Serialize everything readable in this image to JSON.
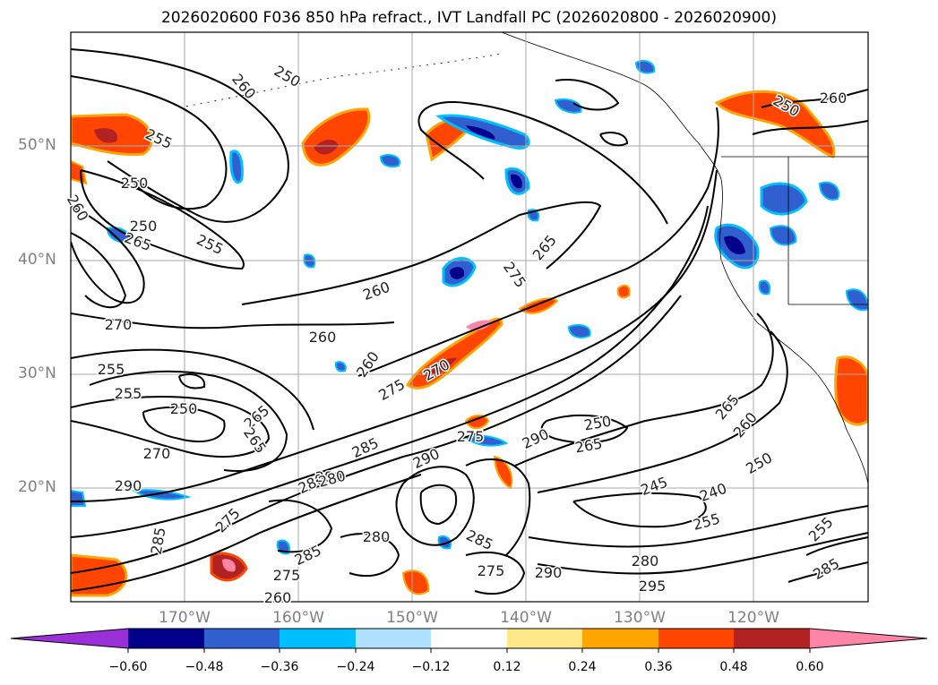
{
  "title": "2026020600 F036 850 hPa refract., IVT Landfall PC (2026020800 - 2026020900)",
  "lat_labels": [
    "50°N",
    "40°N",
    "30°N",
    "20°N"
  ],
  "lon_labels": [
    "170°W",
    "160°W",
    "150°W",
    "140°W",
    "130°W",
    "120°W"
  ],
  "colorbar": {
    "colors": [
      "#9b30d9",
      "#00008b",
      "#3060d0",
      "#00bfff",
      "#b0e2ff",
      "#ffffff",
      "#ffe88a",
      "#ffa500",
      "#ff4500",
      "#b22222",
      "#ff85a8"
    ],
    "ticks": [
      "−0.60",
      "−0.48",
      "−0.36",
      "−0.24",
      "−0.12",
      "0.12",
      "0.24",
      "0.36",
      "0.48",
      "0.60"
    ]
  },
  "contour_labels": [
    "260",
    "250",
    "255",
    "250",
    "260",
    "265",
    "255",
    "250",
    "270",
    "260",
    "255",
    "255",
    "250",
    "270",
    "265",
    "265",
    "260",
    "260",
    "265",
    "275",
    "270",
    "285",
    "275",
    "280",
    "290",
    "275",
    "290",
    "265",
    "250",
    "245",
    "240",
    "250",
    "255",
    "260",
    "265",
    "285",
    "280",
    "285",
    "275",
    "290",
    "280",
    "295",
    "285",
    "260",
    "275",
    "280",
    "290",
    "255",
    "260",
    "250",
    "275",
    "285",
    "280"
  ]
}
